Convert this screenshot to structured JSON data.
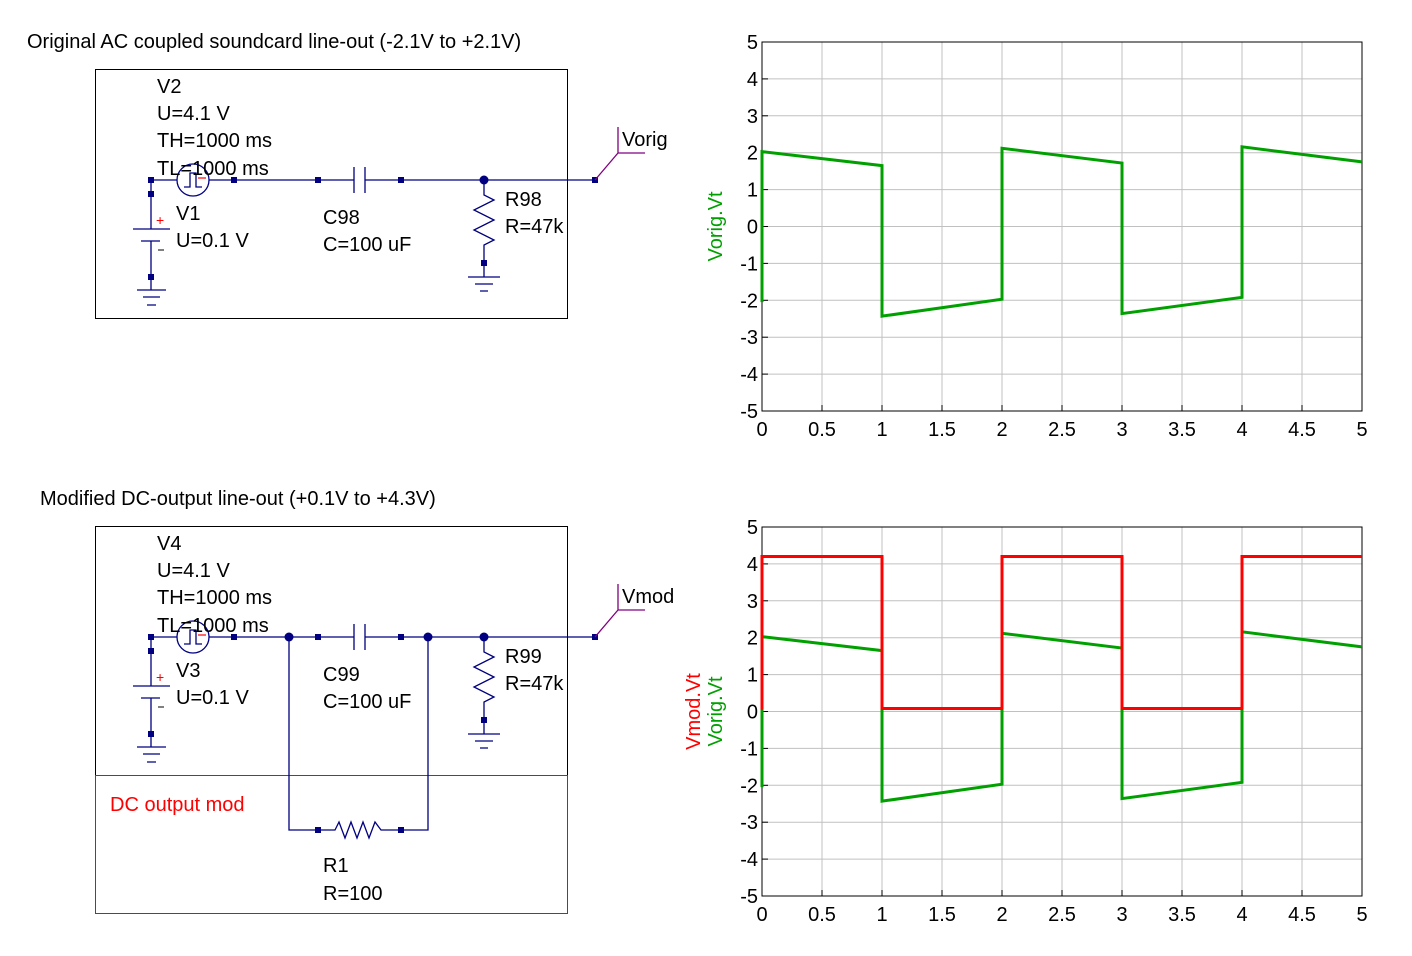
{
  "schematic": {
    "top": {
      "title": "Original AC coupled soundcard line-out (-2.1V to +2.1V)",
      "pulse_source": {
        "name": "V2",
        "u": "U=4.1 V",
        "th": "TH=1000 ms",
        "tl": "TL=1000 ms"
      },
      "dc_source": {
        "name": "V1",
        "u": "U=0.1 V"
      },
      "capacitor": {
        "name": "C98",
        "value": "C=100 uF"
      },
      "resistor": {
        "name": "R98",
        "value": "R=47k"
      },
      "node_label": "Vorig"
    },
    "bottom": {
      "title": "Modified DC-output line-out (+0.1V to +4.3V)",
      "pulse_source": {
        "name": "V4",
        "u": "U=4.1 V",
        "th": "TH=1000 ms",
        "tl": "TL=1000 ms"
      },
      "dc_source": {
        "name": "V3",
        "u": "U=0.1 V"
      },
      "capacitor": {
        "name": "C99",
        "value": "C=100 uF"
      },
      "resistor": {
        "name": "R99",
        "value": "R=47k"
      },
      "node_label": "Vmod",
      "mod_box_label": "DC output mod",
      "bypass_resistor": {
        "name": "R1",
        "value": "R=100"
      }
    },
    "colors": {
      "wire": "#000080",
      "label": "#800080",
      "mod": "#ff0000",
      "plus": "#ff0000"
    }
  },
  "chart_data": [
    {
      "type": "line",
      "title": "",
      "xlabel": "",
      "ylabels": [
        {
          "text": "Vorig.Vt",
          "color": "#00a000"
        }
      ],
      "xlim": [
        0,
        5
      ],
      "ylim": [
        -5,
        5
      ],
      "xticks": [
        "0",
        "0.5",
        "1",
        "1.5",
        "2",
        "2.5",
        "3",
        "3.5",
        "4",
        "4.5",
        "5"
      ],
      "yticks": [
        "-5",
        "-4",
        "-3",
        "-2",
        "-1",
        "0",
        "1",
        "2",
        "3",
        "4",
        "5"
      ],
      "grid": true,
      "series": [
        {
          "name": "Vorig.Vt",
          "color": "#00a000",
          "x": [
            0,
            0,
            1,
            1,
            2,
            2,
            3,
            3,
            4,
            4,
            5
          ],
          "y": [
            -2.05,
            2.03,
            1.65,
            -2.43,
            -1.97,
            2.12,
            1.72,
            -2.36,
            -1.92,
            2.16,
            1.75
          ]
        }
      ]
    },
    {
      "type": "line",
      "title": "",
      "xlabel": "",
      "ylabels": [
        {
          "text": "Vmod.Vt",
          "color": "#ff0000"
        },
        {
          "text": "Vorig.Vt",
          "color": "#00a000"
        }
      ],
      "xlim": [
        0,
        5
      ],
      "ylim": [
        -5,
        5
      ],
      "xticks": [
        "0",
        "0.5",
        "1",
        "1.5",
        "2",
        "2.5",
        "3",
        "3.5",
        "4",
        "4.5",
        "5"
      ],
      "yticks": [
        "-5",
        "-4",
        "-3",
        "-2",
        "-1",
        "0",
        "1",
        "2",
        "3",
        "4",
        "5"
      ],
      "grid": true,
      "series": [
        {
          "name": "Vorig.Vt",
          "color": "#00a000",
          "x": [
            0,
            0,
            1,
            1,
            2,
            2,
            3,
            3,
            4,
            4,
            5
          ],
          "y": [
            -2.05,
            2.03,
            1.65,
            -2.43,
            -1.97,
            2.12,
            1.72,
            -2.36,
            -1.92,
            2.16,
            1.75
          ]
        },
        {
          "name": "Vmod.Vt",
          "color": "#ff0000",
          "x": [
            0,
            0,
            1,
            1,
            2,
            2,
            3,
            3,
            4,
            4,
            5
          ],
          "y": [
            0.05,
            4.2,
            4.2,
            0.08,
            0.08,
            4.2,
            4.2,
            0.08,
            0.08,
            4.2,
            4.2
          ]
        }
      ]
    }
  ]
}
